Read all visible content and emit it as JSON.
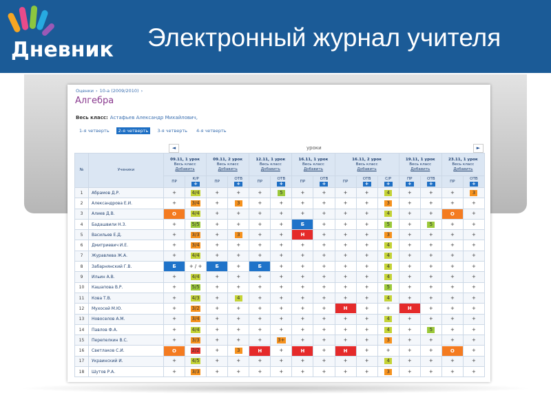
{
  "header": {
    "logo": "Дневник",
    "title": "Электронный журнал учителя"
  },
  "breadcrumb": [
    "Оценки",
    "10-а (2009/2010)"
  ],
  "breadcrumb_separator": "›",
  "subject": "Алгебра",
  "class_label": "Весь класс:",
  "teacher": "Астафьев Александр Михайлович,",
  "quarters": [
    "1-я четверть",
    "2-я четверть",
    "3-я четверть",
    "4-я четверть"
  ],
  "selected_quarter": 1,
  "mark_colors": {
    "5": "#9cc93a",
    "4": "#c4d336",
    "3": "#f6921e",
    "2": "#e8362d",
    "Н": "#e52a2a",
    "Б": "#1f73c9",
    "О": "#f47b20"
  },
  "table": {
    "nav_prev": "◄",
    "nav_next": "►",
    "lessons_caption": "уроки",
    "number_header": "№",
    "students_header": "Ученики",
    "add_button": "+",
    "lessons": [
      {
        "date": "09.11, 1 урок",
        "group": "Весь класс",
        "action": "Добавить",
        "columns": [
          {
            "label": "ПР",
            "addable": false
          },
          {
            "label": "К/Р",
            "addable": true
          }
        ]
      },
      {
        "date": "09.11, 2 урок",
        "group": "Весь класс",
        "action": "Добавить",
        "columns": [
          {
            "label": "ПР",
            "addable": false
          },
          {
            "label": "ОТВ",
            "addable": true
          }
        ]
      },
      {
        "date": "12.11, 1 урок",
        "group": "Весь класс",
        "action": "Добавить",
        "columns": [
          {
            "label": "ПР",
            "addable": false
          },
          {
            "label": "ОТВ",
            "addable": true
          }
        ]
      },
      {
        "date": "16.11, 1 урок",
        "group": "Весь класс",
        "action": "Добавить",
        "columns": [
          {
            "label": "ПР",
            "addable": false
          },
          {
            "label": "ОТВ",
            "addable": true
          }
        ]
      },
      {
        "date": "16.11, 2 урок",
        "group": "Весь класс",
        "action": "Добавить",
        "columns": [
          {
            "label": "ПР",
            "addable": false
          },
          {
            "label": "ОТВ",
            "addable": true
          },
          {
            "label": "С/Р",
            "addable": true
          }
        ]
      },
      {
        "date": "19.11, 1 урок",
        "group": "Весь класс",
        "action": "Добавить",
        "columns": [
          {
            "label": "ПР",
            "addable": true
          },
          {
            "label": "ОТВ",
            "addable": true
          }
        ]
      },
      {
        "date": "23.11, 1 урок",
        "group": "Весь класс",
        "action": "Добавить",
        "columns": [
          {
            "label": "ПР",
            "addable": false
          },
          {
            "label": "ОТВ",
            "addable": true
          }
        ]
      }
    ],
    "rows": [
      {
        "number": 1,
        "name": "Абрамов Д.Р.",
        "marks": [
          "+",
          "4/4",
          "+",
          "+",
          "+",
          "5",
          "+",
          "+",
          "+",
          "+",
          "4",
          "+",
          "+",
          "+",
          "3"
        ]
      },
      {
        "number": 2,
        "name": "Александрова Е.И.",
        "marks": [
          "+",
          "3/4",
          "+",
          "3",
          "+",
          "+",
          "+",
          "+",
          "+",
          "+",
          "3",
          "+",
          "+",
          "+",
          "+"
        ]
      },
      {
        "number": 3,
        "name": "Алиев Д.В.",
        "marks": [
          "О",
          "4/4",
          "+",
          "+",
          "+",
          "+",
          "+",
          "+",
          "+",
          "+",
          "4",
          "+",
          "+",
          "О",
          "+"
        ]
      },
      {
        "number": 4,
        "name": "Бадашвили Н.З.",
        "marks": [
          "+",
          "5/5",
          "+",
          "+",
          "+",
          "+",
          "Б",
          "+",
          "+",
          "+",
          "5",
          "+",
          "5",
          "+",
          "+"
        ]
      },
      {
        "number": 5,
        "name": "Васильев Е.Д.",
        "marks": [
          "+",
          "3/3",
          "+",
          "3",
          "+",
          "+",
          "Н",
          "+",
          "+",
          "+",
          "3",
          "+",
          "+",
          "+",
          "+"
        ]
      },
      {
        "number": 6,
        "name": "Дмитриевич И.Е.",
        "marks": [
          "+",
          "3/4",
          "+",
          "+",
          "+",
          "+",
          "+",
          "+",
          "+",
          "+",
          "4",
          "+",
          "+",
          "+",
          "+"
        ]
      },
      {
        "number": 7,
        "name": "Журавлева Ж.А.",
        "marks": [
          "+",
          "4/4",
          "+",
          "+",
          "+",
          "+",
          "+",
          "+",
          "+",
          "+",
          "4",
          "+",
          "+",
          "+",
          "+"
        ]
      },
      {
        "number": 8,
        "name": "Забарнянский Г.В.",
        "marks": [
          "Б",
          "+ / +",
          "Б",
          "+",
          "Б",
          "+",
          "+",
          "+",
          "+",
          "+",
          "4",
          "+",
          "+",
          "+",
          "+"
        ]
      },
      {
        "number": 9,
        "name": "Ильин А.В.",
        "marks": [
          "+",
          "4/4",
          "+",
          "+",
          "+",
          "+",
          "+",
          "+",
          "+",
          "+",
          "4",
          "+",
          "+",
          "+",
          "+"
        ]
      },
      {
        "number": 10,
        "name": "Кашапова В.Р.",
        "marks": [
          "+",
          "5/5",
          "+",
          "+",
          "+",
          "+",
          "+",
          "+",
          "+",
          "+",
          "5",
          "+",
          "+",
          "+",
          "+"
        ]
      },
      {
        "number": 11,
        "name": "Кова Т.В.",
        "marks": [
          "+",
          "4/3",
          "+",
          "4",
          "+",
          "+",
          "+",
          "+",
          "+",
          "+",
          "4",
          "+",
          "+",
          "+",
          "+"
        ]
      },
      {
        "number": 12,
        "name": "Мухосей М.Ю.",
        "marks": [
          "+",
          "3/2",
          "+",
          "+",
          "+",
          "+",
          "+",
          "+",
          "Н",
          "+",
          "+",
          "Н",
          "+",
          "+",
          "+"
        ]
      },
      {
        "number": 13,
        "name": "Новоселов А.М.",
        "marks": [
          "+",
          "3/4",
          "+",
          "+",
          "+",
          "+",
          "+",
          "+",
          "+",
          "+",
          "4",
          "+",
          "+",
          "+",
          "+"
        ]
      },
      {
        "number": 14,
        "name": "Павлов Ф.А.",
        "marks": [
          "+",
          "4/4",
          "+",
          "+",
          "+",
          "+",
          "+",
          "+",
          "+",
          "+",
          "4",
          "+",
          "5",
          "+",
          "+"
        ]
      },
      {
        "number": 15,
        "name": "Перепелкин В.С.",
        "marks": [
          "+",
          "3/3",
          "+",
          "+",
          "+",
          "3+",
          "+",
          "+",
          "+",
          "+",
          "3",
          "+",
          "+",
          "+",
          "+"
        ]
      },
      {
        "number": 16,
        "name": "Светлаков С.И.",
        "marks": [
          "О",
          "2/2",
          "+",
          "3",
          "Н",
          "+",
          "Н",
          "+",
          "Н",
          "+",
          "+",
          "+",
          "+",
          "О",
          "+"
        ]
      },
      {
        "number": 17,
        "name": "Украинский И.",
        "marks": [
          "+",
          "4/5",
          "+",
          "+",
          "+",
          "+",
          "+",
          "+",
          "+",
          "+",
          "4",
          "+",
          "+",
          "+",
          "+"
        ]
      },
      {
        "number": 18,
        "name": "Шутов Р.А.",
        "marks": [
          "+",
          "3/3",
          "+",
          "+",
          "+",
          "+",
          "+",
          "+",
          "+",
          "+",
          "3",
          "+",
          "+",
          "+",
          "+"
        ]
      }
    ]
  }
}
